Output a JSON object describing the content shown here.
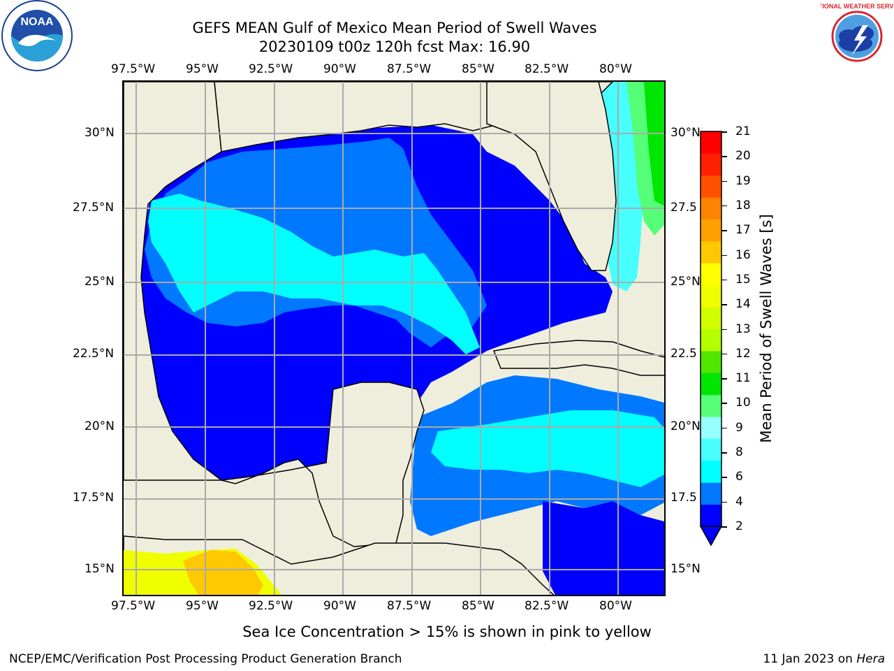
{
  "title_line1": "GEFS MEAN Gulf of Mexico Mean Period of Swell Waves",
  "title_line2": "20230109 t00z 120h fcst   Max: 16.90",
  "lon_labels": [
    "97.5°W",
    "95°W",
    "92.5°W",
    "90°W",
    "87.5°W",
    "85°W",
    "82.5°W",
    "80°W"
  ],
  "lat_labels_left": [
    "30°N",
    "27.5°N",
    "25°N",
    "22.5°N",
    "20°N",
    "17.5°N",
    "15°N"
  ],
  "lat_labels_right": [
    "30°N",
    "27.5",
    "25°N",
    "22.5",
    "20°N",
    "17.5",
    "15°N"
  ],
  "colorbar": {
    "label": "Mean Period of Swell Waves [s]",
    "ticks": [
      "21",
      "20",
      "19",
      "18",
      "17",
      "16",
      "15",
      "14",
      "13",
      "12",
      "11",
      "10",
      "9",
      "8",
      "6",
      "4",
      "2"
    ],
    "colors": [
      "#0000ff",
      "#0078ff",
      "#00ffff",
      "#48ffff",
      "#96ffff",
      "#55ff78",
      "#00e600",
      "#50e600",
      "#b4ff00",
      "#d2ff00",
      "#f0ff00",
      "#ffff00",
      "#ffc800",
      "#ffa000",
      "#ff8200",
      "#ff5000",
      "#ff2000",
      "#ff0000"
    ],
    "extend_color": "#0000ff"
  },
  "note": "Sea Ice Concentration > 15% is shown in pink to yellow",
  "footer_left": "NCEP/EMC/Verification Post Processing Product Generation Branch",
  "footer_right_date": "11 Jan 2023 on ",
  "footer_right_host": "Hera",
  "logos": {
    "left": "noaa-logo",
    "right": "nws-logo"
  },
  "logo_text": {
    "noaa": "NOAA",
    "nws": "NATIONAL WEATHER SERVICE"
  }
}
